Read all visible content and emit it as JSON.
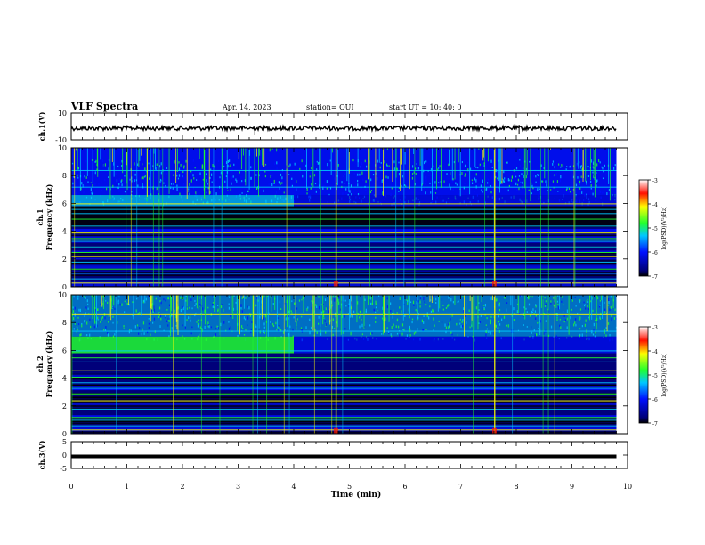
{
  "header": {
    "title": "VLF Spectra",
    "date": "Apr. 14, 2023",
    "station": "station= OUI",
    "start": "start  UT  =   10: 40: 0"
  },
  "colors": {
    "deep": "#00007a",
    "blue": "#0010ff",
    "cyan": "#00c8ff",
    "green": "#20ff30",
    "yellow": "#ffff00",
    "red": "#ff1000",
    "black": "#000000",
    "trace": "#000000"
  },
  "chart_data": [
    {
      "id": "ch1-waveform",
      "type": "line",
      "ylabel": "ch.1(V)",
      "ylim": [
        -10,
        10
      ],
      "yticks": [
        "10",
        "-10"
      ],
      "xlim": [
        0,
        10
      ],
      "series": [
        {
          "description_level": 0,
          "noise_amplitude": 0.6
        }
      ]
    },
    {
      "id": "ch1-spectrogram",
      "type": "heatmap",
      "ylabel_top": "ch.1",
      "ylabel": "Frequency  (kHz)",
      "ylim": [
        0,
        10
      ],
      "yticks": [
        "0",
        "2",
        "4",
        "6",
        "8",
        "10"
      ],
      "xlim": [
        0,
        10
      ],
      "data_end_min": 9.8,
      "colorbar": {
        "label": "log(PSD)(V²/Hz)",
        "ticks": [
          "-3",
          "-4",
          "-5",
          "-6",
          "-7"
        ],
        "range": [
          -7,
          -3
        ]
      },
      "features": {
        "hiss_band_khz": [
          5.8,
          6.6
        ],
        "hiss_until_min": 4.0,
        "dark_band_khz": [
          4.3,
          5.8
        ],
        "events_min": [
          4.75,
          7.6
        ]
      }
    },
    {
      "id": "ch2-spectrogram",
      "type": "heatmap",
      "ylabel_top": "ch.2",
      "ylabel": "Frequency  (kHz)",
      "ylim": [
        0,
        10
      ],
      "yticks": [
        "0",
        "2",
        "4",
        "6",
        "8",
        "10"
      ],
      "xlim": [
        0,
        10
      ],
      "data_end_min": 9.8,
      "colorbar": {
        "label": "log(PSD)(V²/Hz)",
        "ticks": [
          "-3",
          "-4",
          "-5",
          "-6",
          "-7"
        ],
        "range": [
          -7,
          -3
        ]
      },
      "features": {
        "hiss_band_khz": [
          5.8,
          7.0
        ],
        "hiss_until_min": 4.0,
        "events_min": [
          4.75,
          7.6
        ]
      }
    },
    {
      "id": "ch3-waveform",
      "type": "line",
      "ylabel": "ch.3(V)",
      "ylim": [
        -5,
        5
      ],
      "yticks": [
        "5",
        "0",
        "-5"
      ],
      "xlim": [
        0,
        10
      ],
      "series": [
        {
          "level": -0.5
        }
      ]
    }
  ],
  "xaxis": {
    "label": "Time  (min)",
    "ticks": [
      "0",
      "1",
      "2",
      "3",
      "4",
      "5",
      "6",
      "7",
      "8",
      "9",
      "10"
    ]
  }
}
